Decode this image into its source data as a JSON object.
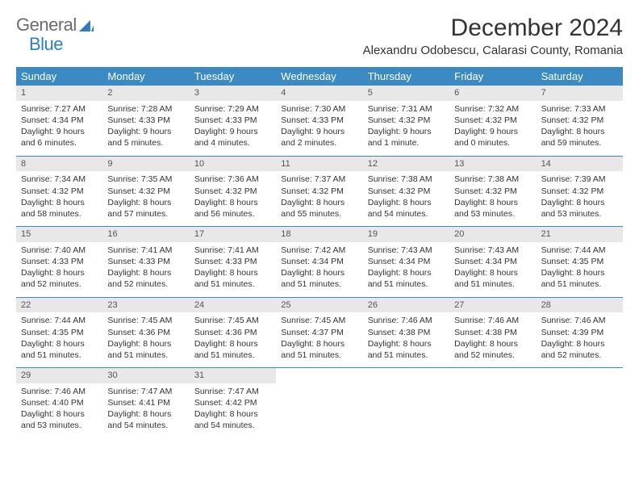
{
  "logo": {
    "text1": "General",
    "text2": "Blue"
  },
  "title": "December 2024",
  "location": "Alexandru Odobescu, Calarasi County, Romania",
  "day_names": [
    "Sunday",
    "Monday",
    "Tuesday",
    "Wednesday",
    "Thursday",
    "Friday",
    "Saturday"
  ],
  "colors": {
    "header_bg": "#3b8ac4",
    "header_text": "#ffffff",
    "daynum_bg": "#e8e8e8",
    "logo_gray": "#6b6b6b",
    "logo_blue": "#2f7cc0",
    "divider": "#3b8ac4"
  },
  "typography": {
    "title_fontsize": 30,
    "location_fontsize": 15,
    "dayname_fontsize": 13,
    "cell_fontsize": 10.5
  },
  "weeks": [
    [
      {
        "n": "1",
        "sr": "Sunrise: 7:27 AM",
        "ss": "Sunset: 4:34 PM",
        "dl": "Daylight: 9 hours and 6 minutes."
      },
      {
        "n": "2",
        "sr": "Sunrise: 7:28 AM",
        "ss": "Sunset: 4:33 PM",
        "dl": "Daylight: 9 hours and 5 minutes."
      },
      {
        "n": "3",
        "sr": "Sunrise: 7:29 AM",
        "ss": "Sunset: 4:33 PM",
        "dl": "Daylight: 9 hours and 4 minutes."
      },
      {
        "n": "4",
        "sr": "Sunrise: 7:30 AM",
        "ss": "Sunset: 4:33 PM",
        "dl": "Daylight: 9 hours and 2 minutes."
      },
      {
        "n": "5",
        "sr": "Sunrise: 7:31 AM",
        "ss": "Sunset: 4:32 PM",
        "dl": "Daylight: 9 hours and 1 minute."
      },
      {
        "n": "6",
        "sr": "Sunrise: 7:32 AM",
        "ss": "Sunset: 4:32 PM",
        "dl": "Daylight: 9 hours and 0 minutes."
      },
      {
        "n": "7",
        "sr": "Sunrise: 7:33 AM",
        "ss": "Sunset: 4:32 PM",
        "dl": "Daylight: 8 hours and 59 minutes."
      }
    ],
    [
      {
        "n": "8",
        "sr": "Sunrise: 7:34 AM",
        "ss": "Sunset: 4:32 PM",
        "dl": "Daylight: 8 hours and 58 minutes."
      },
      {
        "n": "9",
        "sr": "Sunrise: 7:35 AM",
        "ss": "Sunset: 4:32 PM",
        "dl": "Daylight: 8 hours and 57 minutes."
      },
      {
        "n": "10",
        "sr": "Sunrise: 7:36 AM",
        "ss": "Sunset: 4:32 PM",
        "dl": "Daylight: 8 hours and 56 minutes."
      },
      {
        "n": "11",
        "sr": "Sunrise: 7:37 AM",
        "ss": "Sunset: 4:32 PM",
        "dl": "Daylight: 8 hours and 55 minutes."
      },
      {
        "n": "12",
        "sr": "Sunrise: 7:38 AM",
        "ss": "Sunset: 4:32 PM",
        "dl": "Daylight: 8 hours and 54 minutes."
      },
      {
        "n": "13",
        "sr": "Sunrise: 7:38 AM",
        "ss": "Sunset: 4:32 PM",
        "dl": "Daylight: 8 hours and 53 minutes."
      },
      {
        "n": "14",
        "sr": "Sunrise: 7:39 AM",
        "ss": "Sunset: 4:32 PM",
        "dl": "Daylight: 8 hours and 53 minutes."
      }
    ],
    [
      {
        "n": "15",
        "sr": "Sunrise: 7:40 AM",
        "ss": "Sunset: 4:33 PM",
        "dl": "Daylight: 8 hours and 52 minutes."
      },
      {
        "n": "16",
        "sr": "Sunrise: 7:41 AM",
        "ss": "Sunset: 4:33 PM",
        "dl": "Daylight: 8 hours and 52 minutes."
      },
      {
        "n": "17",
        "sr": "Sunrise: 7:41 AM",
        "ss": "Sunset: 4:33 PM",
        "dl": "Daylight: 8 hours and 51 minutes."
      },
      {
        "n": "18",
        "sr": "Sunrise: 7:42 AM",
        "ss": "Sunset: 4:34 PM",
        "dl": "Daylight: 8 hours and 51 minutes."
      },
      {
        "n": "19",
        "sr": "Sunrise: 7:43 AM",
        "ss": "Sunset: 4:34 PM",
        "dl": "Daylight: 8 hours and 51 minutes."
      },
      {
        "n": "20",
        "sr": "Sunrise: 7:43 AM",
        "ss": "Sunset: 4:34 PM",
        "dl": "Daylight: 8 hours and 51 minutes."
      },
      {
        "n": "21",
        "sr": "Sunrise: 7:44 AM",
        "ss": "Sunset: 4:35 PM",
        "dl": "Daylight: 8 hours and 51 minutes."
      }
    ],
    [
      {
        "n": "22",
        "sr": "Sunrise: 7:44 AM",
        "ss": "Sunset: 4:35 PM",
        "dl": "Daylight: 8 hours and 51 minutes."
      },
      {
        "n": "23",
        "sr": "Sunrise: 7:45 AM",
        "ss": "Sunset: 4:36 PM",
        "dl": "Daylight: 8 hours and 51 minutes."
      },
      {
        "n": "24",
        "sr": "Sunrise: 7:45 AM",
        "ss": "Sunset: 4:36 PM",
        "dl": "Daylight: 8 hours and 51 minutes."
      },
      {
        "n": "25",
        "sr": "Sunrise: 7:45 AM",
        "ss": "Sunset: 4:37 PM",
        "dl": "Daylight: 8 hours and 51 minutes."
      },
      {
        "n": "26",
        "sr": "Sunrise: 7:46 AM",
        "ss": "Sunset: 4:38 PM",
        "dl": "Daylight: 8 hours and 51 minutes."
      },
      {
        "n": "27",
        "sr": "Sunrise: 7:46 AM",
        "ss": "Sunset: 4:38 PM",
        "dl": "Daylight: 8 hours and 52 minutes."
      },
      {
        "n": "28",
        "sr": "Sunrise: 7:46 AM",
        "ss": "Sunset: 4:39 PM",
        "dl": "Daylight: 8 hours and 52 minutes."
      }
    ],
    [
      {
        "n": "29",
        "sr": "Sunrise: 7:46 AM",
        "ss": "Sunset: 4:40 PM",
        "dl": "Daylight: 8 hours and 53 minutes."
      },
      {
        "n": "30",
        "sr": "Sunrise: 7:47 AM",
        "ss": "Sunset: 4:41 PM",
        "dl": "Daylight: 8 hours and 54 minutes."
      },
      {
        "n": "31",
        "sr": "Sunrise: 7:47 AM",
        "ss": "Sunset: 4:42 PM",
        "dl": "Daylight: 8 hours and 54 minutes."
      },
      {
        "empty": true
      },
      {
        "empty": true
      },
      {
        "empty": true
      },
      {
        "empty": true
      }
    ]
  ]
}
